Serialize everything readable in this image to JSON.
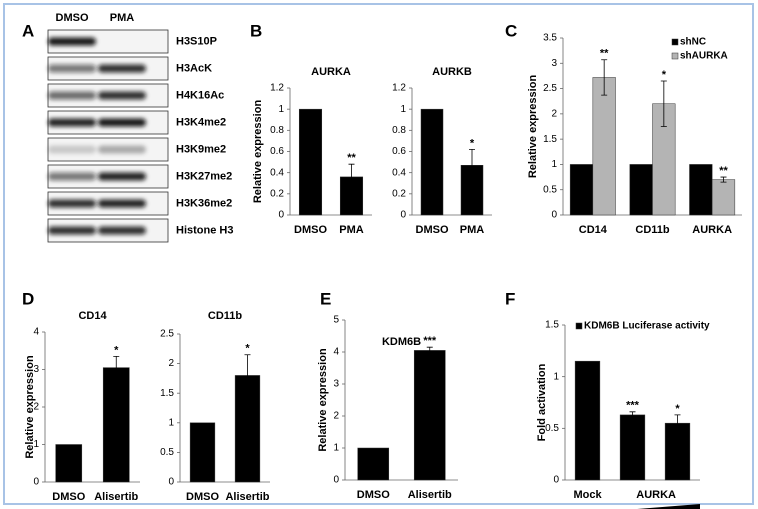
{
  "panels": [
    "A",
    "B",
    "C",
    "D",
    "E",
    "F"
  ],
  "blot": {
    "conditions": [
      "DMSO",
      "PMA"
    ],
    "rows": [
      "H3S10P",
      "H3AcK",
      "H4K16Ac",
      "H3K4me2",
      "H3K9me2",
      "H3K27me2",
      "H3K36me2",
      "Histone H3"
    ]
  },
  "chart_data": [
    {
      "type": "bar",
      "title": "AURKA",
      "ylabel": "Relative expression",
      "categories": [
        "DMSO",
        "PMA"
      ],
      "values": [
        1,
        0.36
      ],
      "errors": [
        null,
        0.12
      ],
      "significance": [
        null,
        "**"
      ],
      "color": "#000000",
      "ylim": [
        0,
        1.2
      ],
      "yticks": [
        0,
        0.2,
        0.4,
        0.6,
        0.8,
        1,
        1.2
      ]
    },
    {
      "type": "bar",
      "title": "AURKB",
      "categories": [
        "DMSO",
        "PMA"
      ],
      "values": [
        1,
        0.47
      ],
      "errors": [
        null,
        0.15
      ],
      "significance": [
        null,
        "*"
      ],
      "color": "#000000",
      "ylim": [
        0,
        1.2
      ],
      "yticks": [
        0,
        0.2,
        0.4,
        0.6,
        0.8,
        1,
        1.2
      ]
    },
    {
      "type": "bar",
      "ylabel": "Relative expression",
      "categories": [
        "CD14",
        "CD11b",
        "AURKA"
      ],
      "series": [
        {
          "name": "shNC",
          "color": "#000000",
          "values": [
            1,
            1,
            1
          ],
          "errors": [
            null,
            null,
            null
          ],
          "significance": [
            null,
            null,
            null
          ]
        },
        {
          "name": "shAURKA",
          "color": "#b4b4b4",
          "values": [
            2.72,
            2.2,
            0.7
          ],
          "errors": [
            0.35,
            0.45,
            0.05
          ],
          "significance": [
            "**",
            "*",
            "**"
          ]
        }
      ],
      "legend": "upper right",
      "ylim": [
        0,
        3.5
      ],
      "yticks": [
        0,
        0.5,
        1,
        1.5,
        2,
        2.5,
        3,
        3.5
      ]
    },
    {
      "type": "bar",
      "title": "CD14",
      "ylabel": "Relative expression",
      "categories": [
        "DMSO",
        "Alisertib"
      ],
      "values": [
        1,
        3.05
      ],
      "errors": [
        null,
        0.3
      ],
      "significance": [
        null,
        "*"
      ],
      "color": "#000000",
      "ylim": [
        0,
        4
      ],
      "yticks": [
        0,
        1,
        2,
        3,
        4
      ]
    },
    {
      "type": "bar",
      "title": "CD11b",
      "categories": [
        "DMSO",
        "Alisertib"
      ],
      "values": [
        1,
        1.8
      ],
      "errors": [
        null,
        0.35
      ],
      "significance": [
        null,
        "*"
      ],
      "color": "#000000",
      "ylim": [
        0,
        2.5
      ],
      "yticks": [
        0,
        0.5,
        1,
        1.5,
        2,
        2.5
      ]
    },
    {
      "type": "bar",
      "title": "KDM6B",
      "ylabel": "Relative expression",
      "categories": [
        "DMSO",
        "Alisertib"
      ],
      "values": [
        1,
        4.05
      ],
      "errors": [
        null,
        0.1
      ],
      "significance": [
        null,
        "***"
      ],
      "color": "#000000",
      "ylim": [
        0,
        5
      ],
      "yticks": [
        0,
        1,
        2,
        3,
        4,
        5
      ]
    },
    {
      "type": "bar",
      "ylabel": "Fold activation",
      "categories": [
        "Mock",
        null,
        null
      ],
      "group_label": "AURKA",
      "series": [
        {
          "name": "KDM6B  Luciferase activity",
          "color": "#000000",
          "values": [
            1.15,
            0.63,
            0.55
          ],
          "errors": [
            null,
            0.03,
            0.08
          ],
          "significance": [
            null,
            "***",
            "*"
          ]
        }
      ],
      "legend": "upper left",
      "ylim": [
        0,
        1.5
      ],
      "yticks": [
        0,
        0.5,
        1,
        1.5
      ]
    }
  ]
}
